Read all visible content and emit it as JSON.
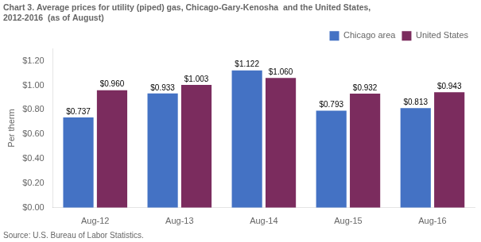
{
  "chart_data": {
    "type": "bar",
    "title": [
      "Chart 3. Average prices for utility (piped) gas, Chicago-Gary-Kenosha  and the United States,",
      "2012-2016  (as of August)"
    ],
    "ylabel": "Per therm",
    "source": "Source: U.S. Bureau of Labor Statistics.",
    "categories": [
      "Aug-12",
      "Aug-13",
      "Aug-14",
      "Aug-15",
      "Aug-16"
    ],
    "series": [
      {
        "name": "Chicago area",
        "color": "#4472C4",
        "values": [
          0.737,
          0.933,
          1.122,
          0.793,
          0.813
        ],
        "value_labels": [
          "$0.737",
          "$0.933",
          "$1.122",
          "$0.793",
          "$0.813"
        ]
      },
      {
        "name": "United States",
        "color": "#7B2C5E",
        "values": [
          0.96,
          1.003,
          1.06,
          0.932,
          0.943
        ],
        "value_labels": [
          "$0.960",
          "$1.003",
          "$1.060",
          "$0.932",
          "$0.943"
        ]
      }
    ],
    "ylim": [
      0,
      1.3
    ],
    "yticks": [
      {
        "value": 0.0,
        "label": "$0.00"
      },
      {
        "value": 0.2,
        "label": "$0.20"
      },
      {
        "value": 0.4,
        "label": "$0.40"
      },
      {
        "value": 0.6,
        "label": "$0.60"
      },
      {
        "value": 0.8,
        "label": "$0.80"
      },
      {
        "value": 1.0,
        "label": "$1.00"
      },
      {
        "value": 1.2,
        "label": "$1.20"
      }
    ],
    "grid": false,
    "legend": "upper right",
    "data_labels": true
  }
}
